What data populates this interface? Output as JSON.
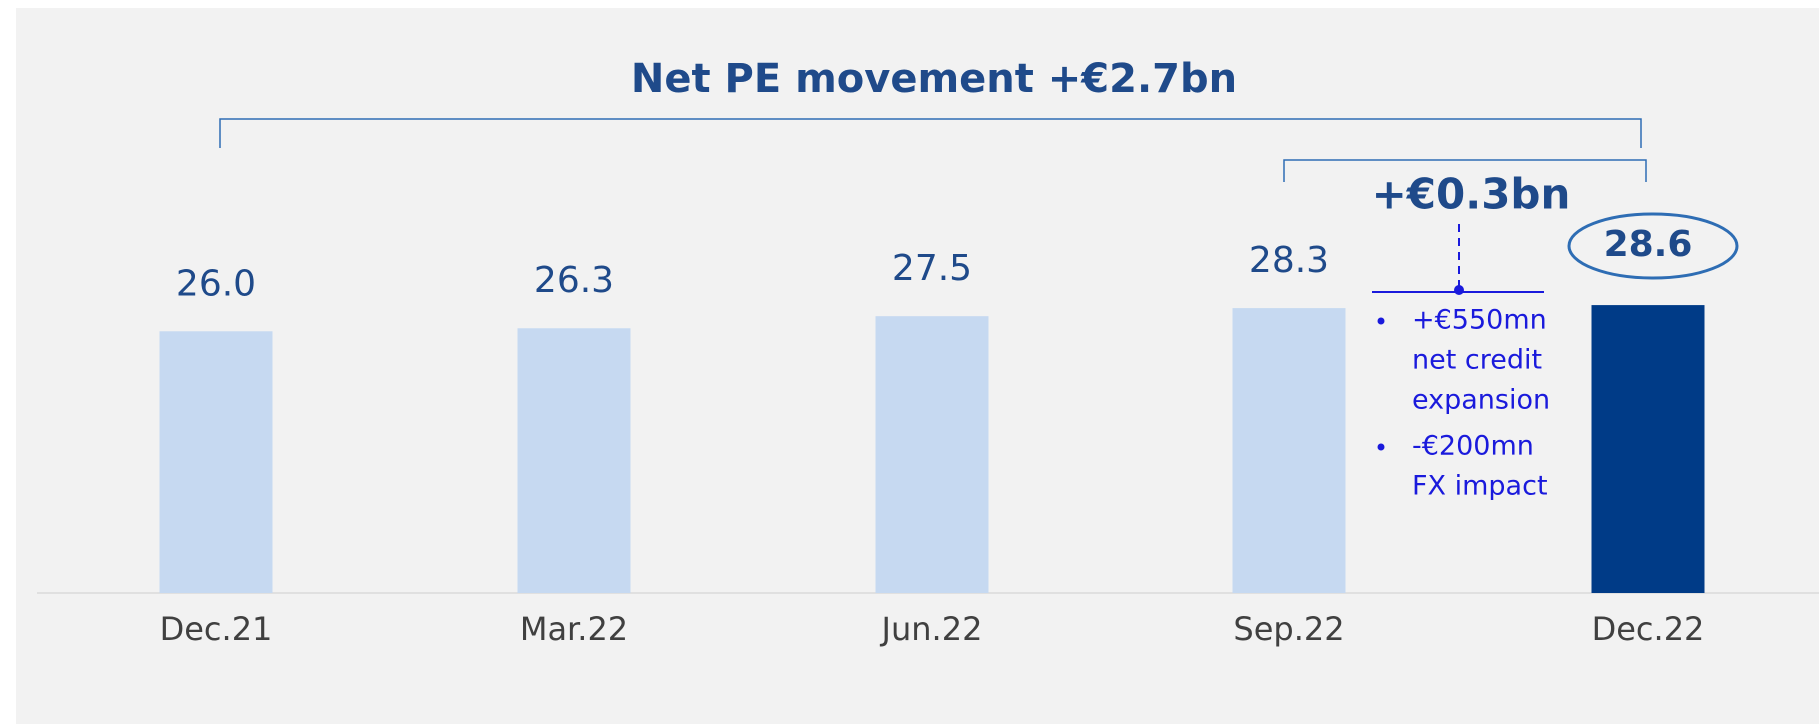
{
  "chart_data": {
    "type": "bar",
    "title": "Net PE movement +€2.7bn",
    "categories": [
      "Dec.21",
      "Mar.22",
      "Jun.22",
      "Sep.22",
      "Dec.22"
    ],
    "values": [
      26.0,
      26.3,
      27.5,
      28.3,
      28.6
    ],
    "value_labels": [
      "26.0",
      "26.3",
      "27.5",
      "28.3",
      "28.6"
    ],
    "colors": [
      "#c6d9f1",
      "#c6d9f1",
      "#c6d9f1",
      "#c6d9f1",
      "#003b87"
    ],
    "ylim": [
      0,
      30
    ],
    "annotations": {
      "change": "+€0.3bn",
      "bullets": [
        [
          "+€550mn",
          "net credit",
          "expansion"
        ],
        [
          "-€200mn",
          "FX impact"
        ]
      ]
    }
  }
}
